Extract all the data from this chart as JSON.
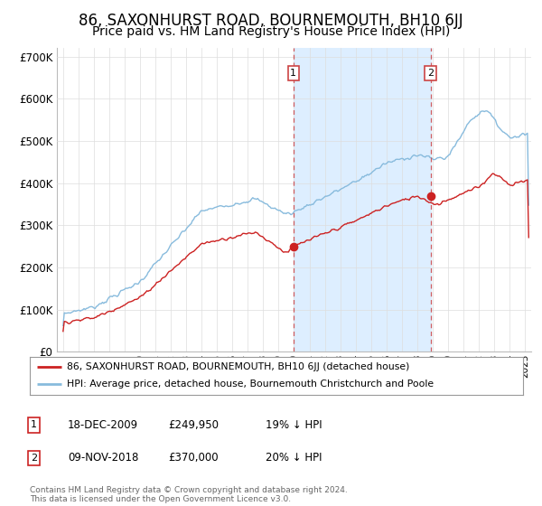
{
  "title": "86, SAXONHURST ROAD, BOURNEMOUTH, BH10 6JJ",
  "subtitle": "Price paid vs. HM Land Registry's House Price Index (HPI)",
  "ylabel_ticks": [
    "£0",
    "£100K",
    "£200K",
    "£300K",
    "£400K",
    "£500K",
    "£600K",
    "£700K"
  ],
  "ytick_values": [
    0,
    100000,
    200000,
    300000,
    400000,
    500000,
    600000,
    700000
  ],
  "ylim": [
    0,
    720000
  ],
  "sale1_year": 2009.96,
  "sale1_price": 249950,
  "sale1_label": "1",
  "sale2_year": 2018.87,
  "sale2_price": 370000,
  "sale2_label": "2",
  "red_line_color": "#cc2222",
  "blue_line_color": "#88bbdd",
  "shade_color": "#ddeeff",
  "vline_color": "#cc4444",
  "legend_red_label": "86, SAXONHURST ROAD, BOURNEMOUTH, BH10 6JJ (detached house)",
  "legend_blue_label": "HPI: Average price, detached house, Bournemouth Christchurch and Poole",
  "table_rows": [
    [
      "1",
      "18-DEC-2009",
      "£249,950",
      "19% ↓ HPI"
    ],
    [
      "2",
      "09-NOV-2018",
      "£370,000",
      "20% ↓ HPI"
    ]
  ],
  "footer": "Contains HM Land Registry data © Crown copyright and database right 2024.\nThis data is licensed under the Open Government Licence v3.0.",
  "background_color": "#ffffff",
  "grid_color": "#dddddd",
  "title_fontsize": 12,
  "subtitle_fontsize": 10,
  "axis_fontsize": 8.5
}
